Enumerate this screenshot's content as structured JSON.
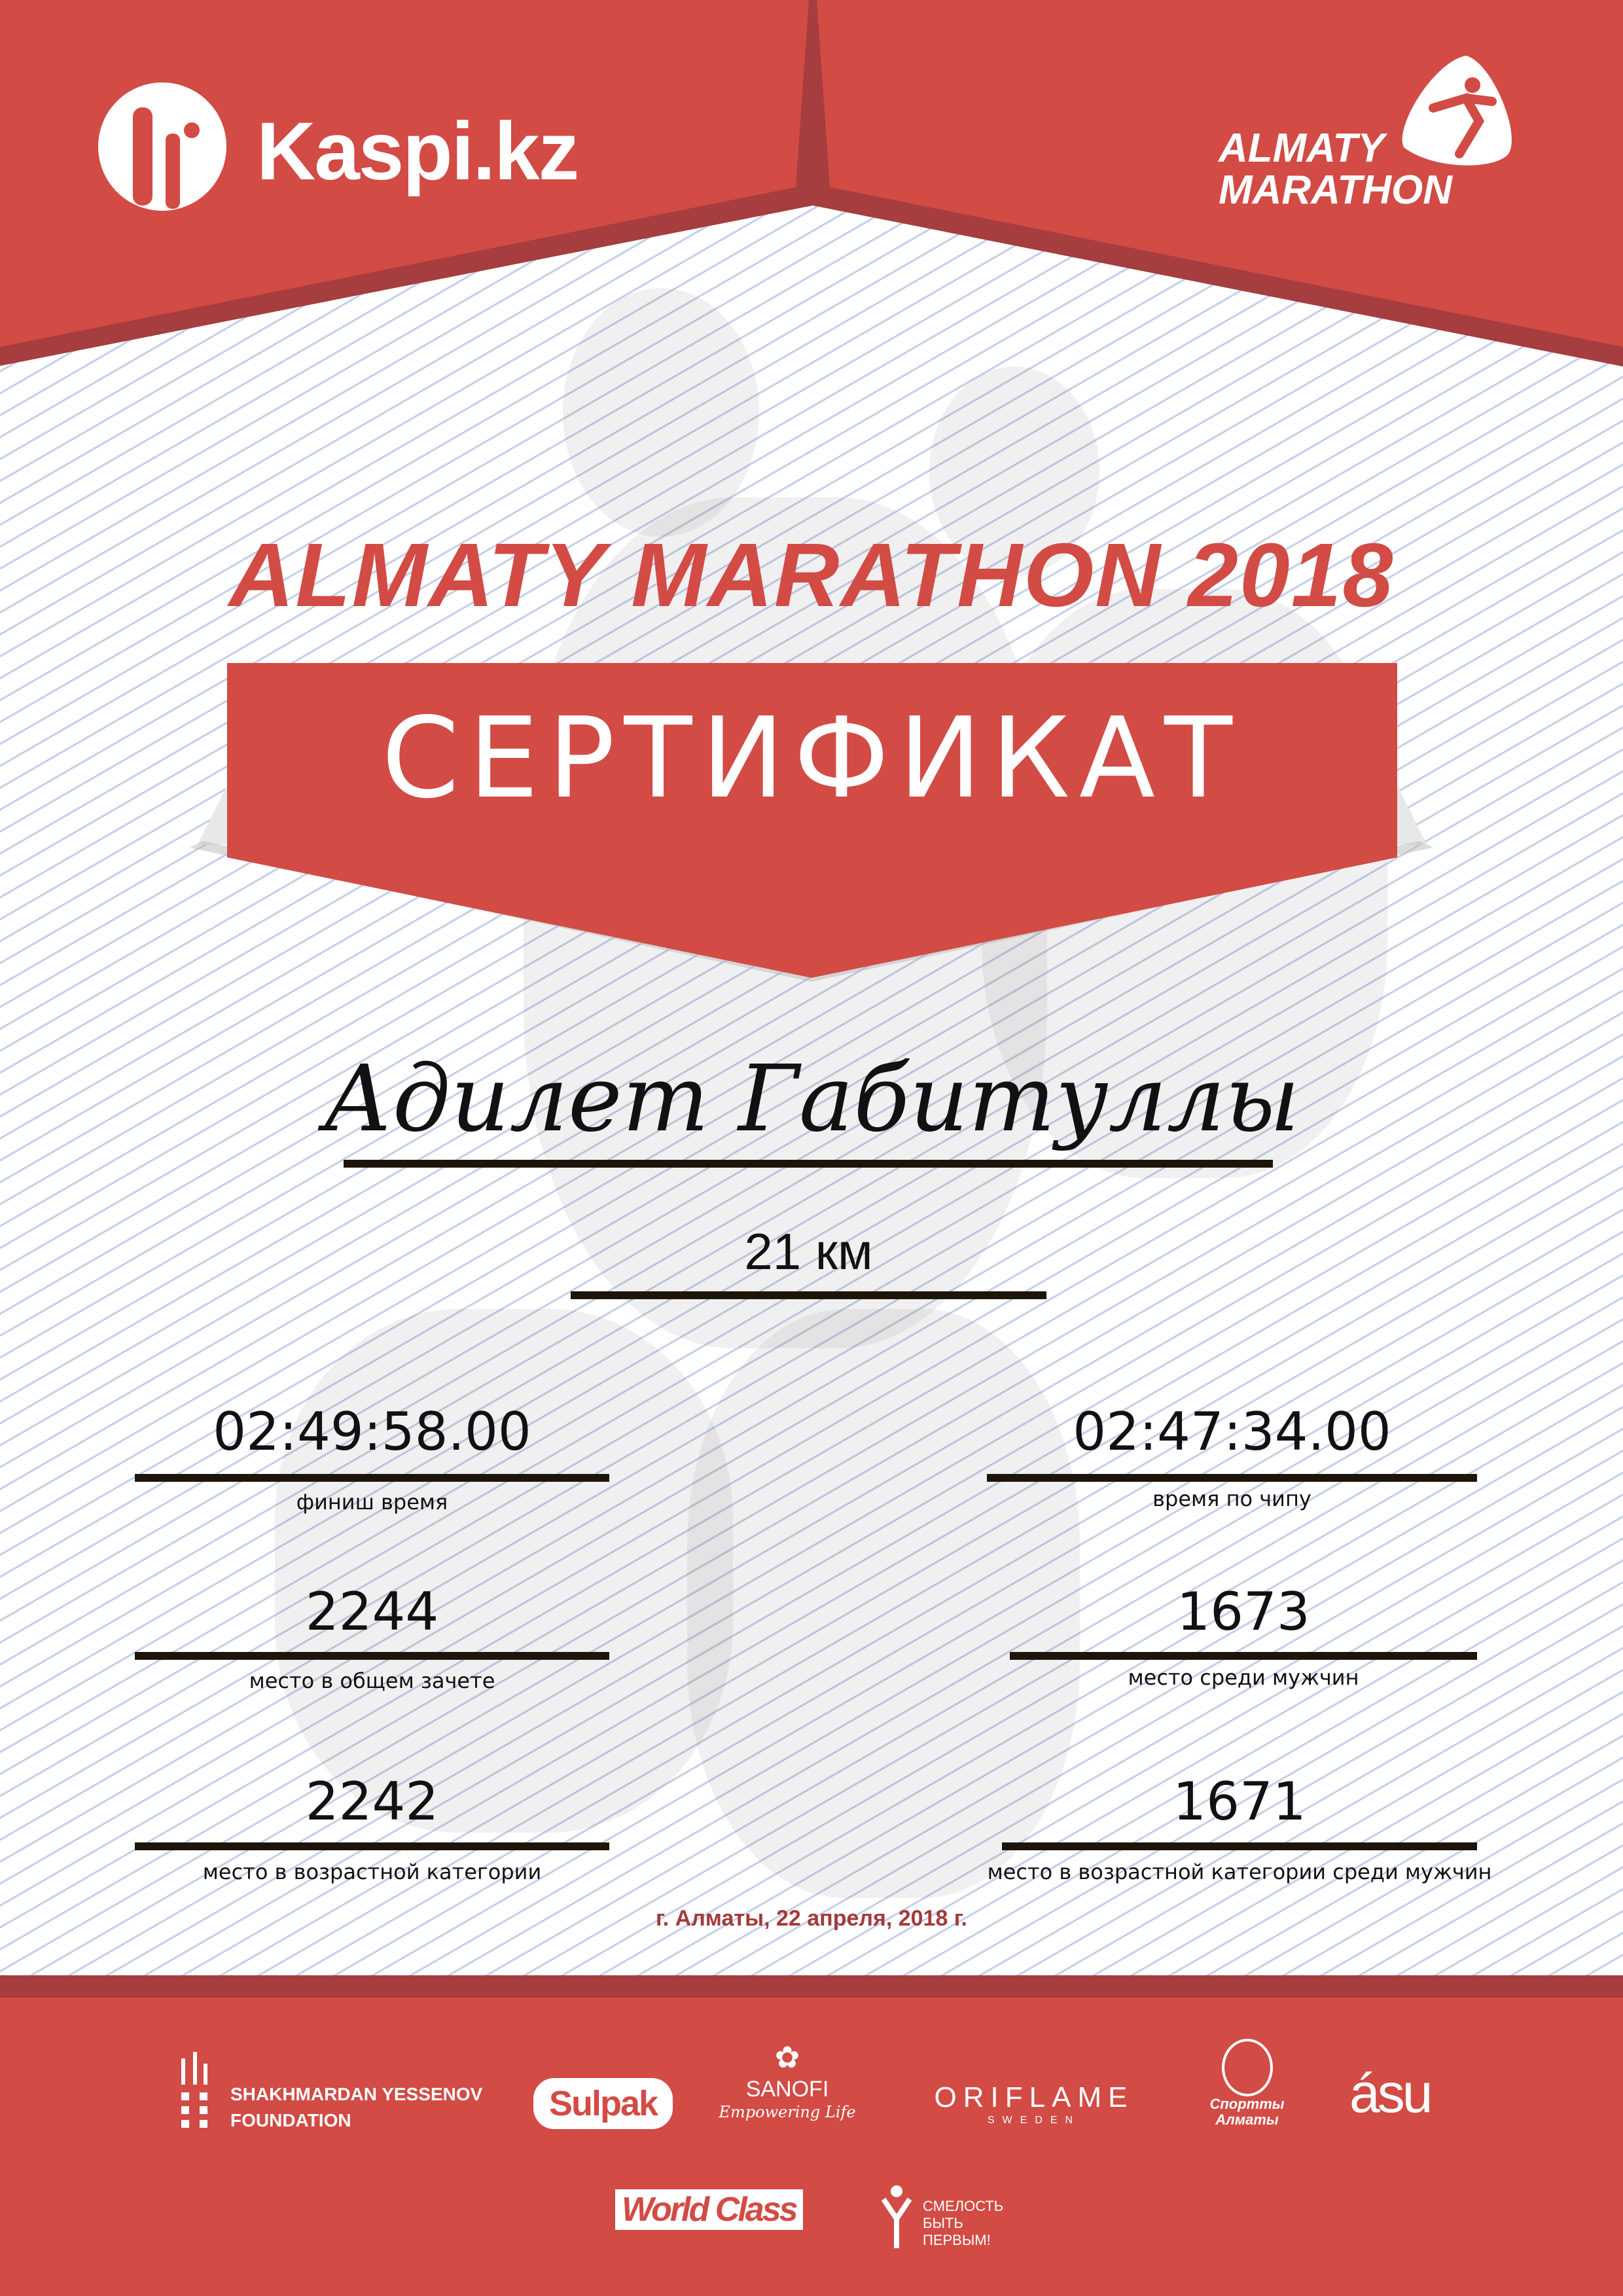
{
  "colors": {
    "brand_red": "#d24b45",
    "dark_red": "#a63d3e",
    "rule": "#1e150a",
    "date": "#a33a3a"
  },
  "header": {
    "left_logo": {
      "icon": "kaspi-figures-icon",
      "text": "Kaspi.kz"
    },
    "right_logo": {
      "icon": "runner-drop-icon",
      "line1": "ALMATY",
      "line2": "MARATHON"
    }
  },
  "title": "ALMATY MARATHON 2018",
  "banner": "СЕРТИФИКАТ",
  "participant": {
    "name": "Адилет Габитуллы",
    "distance": "21 км"
  },
  "results": [
    {
      "value": "02:49:58.00",
      "label": "финиш время"
    },
    {
      "value": "02:47:34.00",
      "label": "время по чипу"
    },
    {
      "value": "2244",
      "label": "место в общем зачете"
    },
    {
      "value": "1673",
      "label": "место среди мужчин"
    },
    {
      "value": "2242",
      "label": "место в возрастной категории"
    },
    {
      "value": "1671",
      "label": "место в возрастной категории среди мужчин"
    }
  ],
  "date": "г. Алматы, 22 апреля, 2018 г.",
  "sponsors": {
    "yessenov": {
      "line1": "SHAKHMARDAN YESSENOV",
      "line2": "FOUNDATION"
    },
    "sulpak": "Sulpak",
    "sanofi": {
      "name": "SANOFI",
      "tagline": "Empowering Life"
    },
    "oriflame": {
      "name": "ORIFLAME",
      "sub": "SWEDEN"
    },
    "sport_almaty": {
      "line1": "Спортты",
      "line2": "Алматы"
    },
    "asu": "ásu",
    "worldclass": "World Class",
    "fund": {
      "line1": "СМЕЛОСТЬ",
      "line2": "БЫТЬ",
      "line3": "ПЕРВЫМ!"
    }
  }
}
